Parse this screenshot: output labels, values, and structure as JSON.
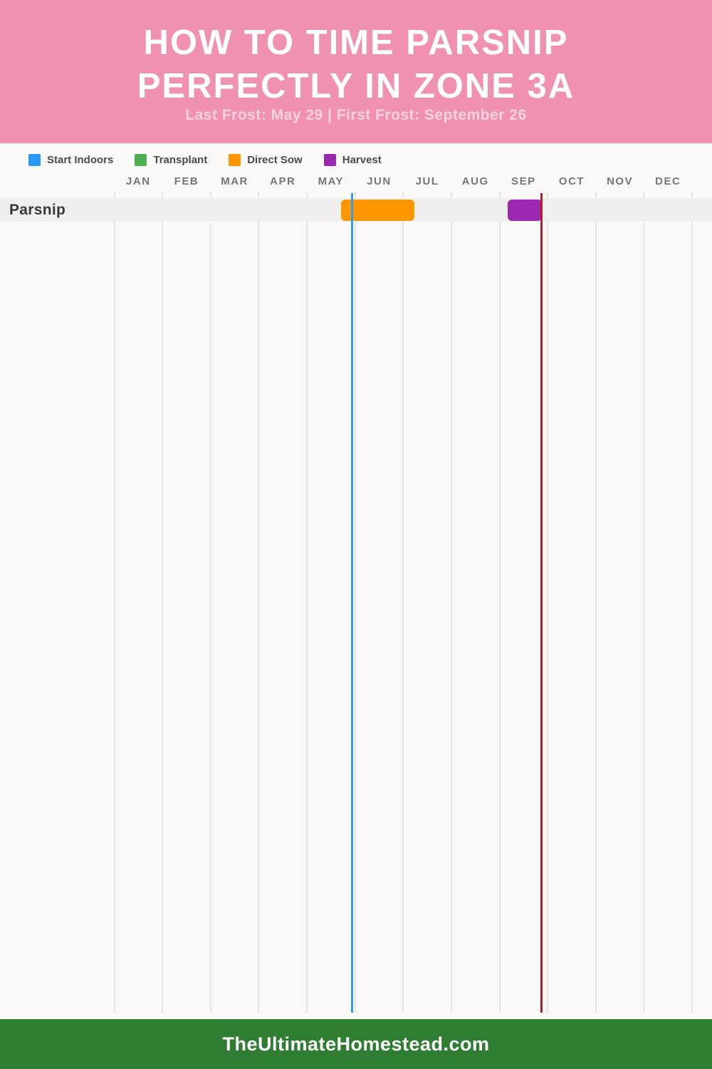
{
  "header": {
    "title_line1": "HOW TO TIME PARSNIP",
    "title_line2": "PERFECTLY IN ZONE 3A",
    "subtitle": "Last Frost: May 29 | First Frost: September 26"
  },
  "legend": {
    "items": [
      {
        "label": "Start Indoors",
        "color_key": "start_indoors"
      },
      {
        "label": "Transplant",
        "color_key": "transplant"
      },
      {
        "label": "Direct Sow",
        "color_key": "direct_sow"
      },
      {
        "label": "Harvest",
        "color_key": "harvest"
      }
    ]
  },
  "chart_data": {
    "type": "gantt",
    "title": "How to Time Parsnip Perfectly in Zone 3a",
    "subtitle": "Last Frost: May 29 | First Frost: September 26",
    "months": [
      "JAN",
      "FEB",
      "MAR",
      "APR",
      "MAY",
      "JUN",
      "JUL",
      "AUG",
      "SEP",
      "OCT",
      "NOV",
      "DEC"
    ],
    "x_axis_range_months": [
      0,
      12
    ],
    "grid": "vertical-month-boundaries",
    "legend_position": "top-left",
    "rows": [
      {
        "label": "Parsnip",
        "bars": [
          {
            "series": "Direct Sow",
            "color_key": "direct_sow",
            "start_month": 4.71,
            "end_month": 6.23
          },
          {
            "series": "Harvest",
            "color_key": "harvest",
            "start_month": 8.17,
            "end_month": 8.88
          }
        ]
      }
    ],
    "markers": [
      {
        "name": "last-frost-line",
        "label": "Last Frost: May 29",
        "month": 4.94,
        "color_key": "last_frost"
      },
      {
        "name": "first-frost-line",
        "label": "First Frost: September 26",
        "month": 8.87,
        "color_key": "first_frost"
      }
    ]
  },
  "colors": {
    "header_bg": "#F092AF",
    "title_text": "#FFFFFF",
    "subtitle_text": "#F8D2DF",
    "page_bg": "#FAF9F7",
    "row_band": "#F0EFEE",
    "gridline": "#E5E4E2",
    "month_label": "#757575",
    "legend_text": "#4B4B4B",
    "crop_label": "#383838",
    "start_indoors": "#2B9AF3",
    "transplant": "#4CAF50",
    "direct_sow": "#FF9800",
    "harvest": "#9C27B0",
    "last_frost": "#2E9CF4",
    "first_frost": "#B02025",
    "footer_bg": "#2F7D33",
    "footer_text": "#FFFFFF"
  },
  "footer": {
    "site": "TheUltimateHomestead.com"
  }
}
